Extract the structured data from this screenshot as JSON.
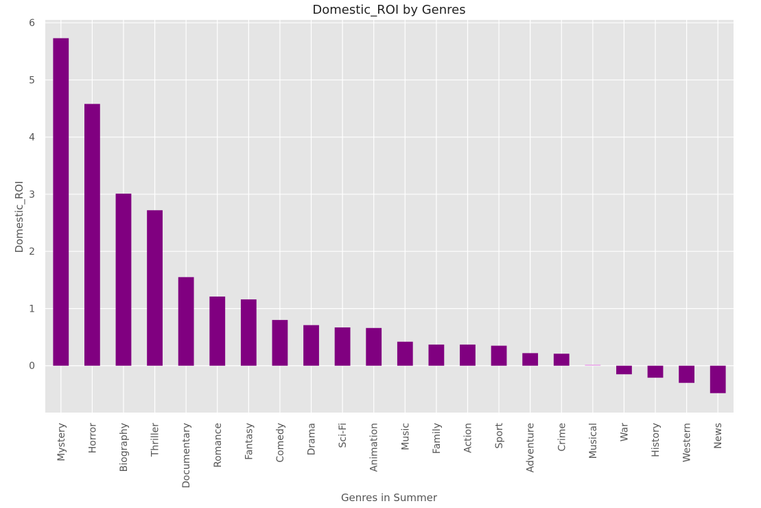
{
  "chart_data": {
    "type": "bar",
    "title": "Domestic_ROI by Genres",
    "xlabel": "Genres in Summer",
    "ylabel": "Domestic_ROI",
    "categories": [
      "Mystery",
      "Horror",
      "Biography",
      "Thriller",
      "Documentary",
      "Romance",
      "Fantasy",
      "Comedy",
      "Drama",
      "Sci-Fi",
      "Animation",
      "Music",
      "Family",
      "Action",
      "Sport",
      "Adventure",
      "Crime",
      "Musical",
      "War",
      "History",
      "Western",
      "News"
    ],
    "values": [
      5.73,
      4.58,
      3.01,
      2.72,
      1.55,
      1.21,
      1.16,
      0.8,
      0.71,
      0.67,
      0.66,
      0.42,
      0.37,
      0.37,
      0.35,
      0.22,
      0.21,
      0.02,
      -0.15,
      -0.21,
      -0.3,
      -0.48
    ],
    "highlighted_categories": [
      "Musical"
    ],
    "ylim": [
      -0.82,
      6.05
    ],
    "yticks": [
      "6",
      "5",
      "4",
      "3",
      "2",
      "1",
      "0"
    ],
    "ytick_values": [
      6,
      5,
      4,
      3,
      2,
      1,
      0
    ],
    "grid": true,
    "colors": {
      "bar": "#800080",
      "bar_highlight": "#e8a8e8",
      "plot_background": "#e5e5e5",
      "grid": "#ffffff"
    }
  }
}
